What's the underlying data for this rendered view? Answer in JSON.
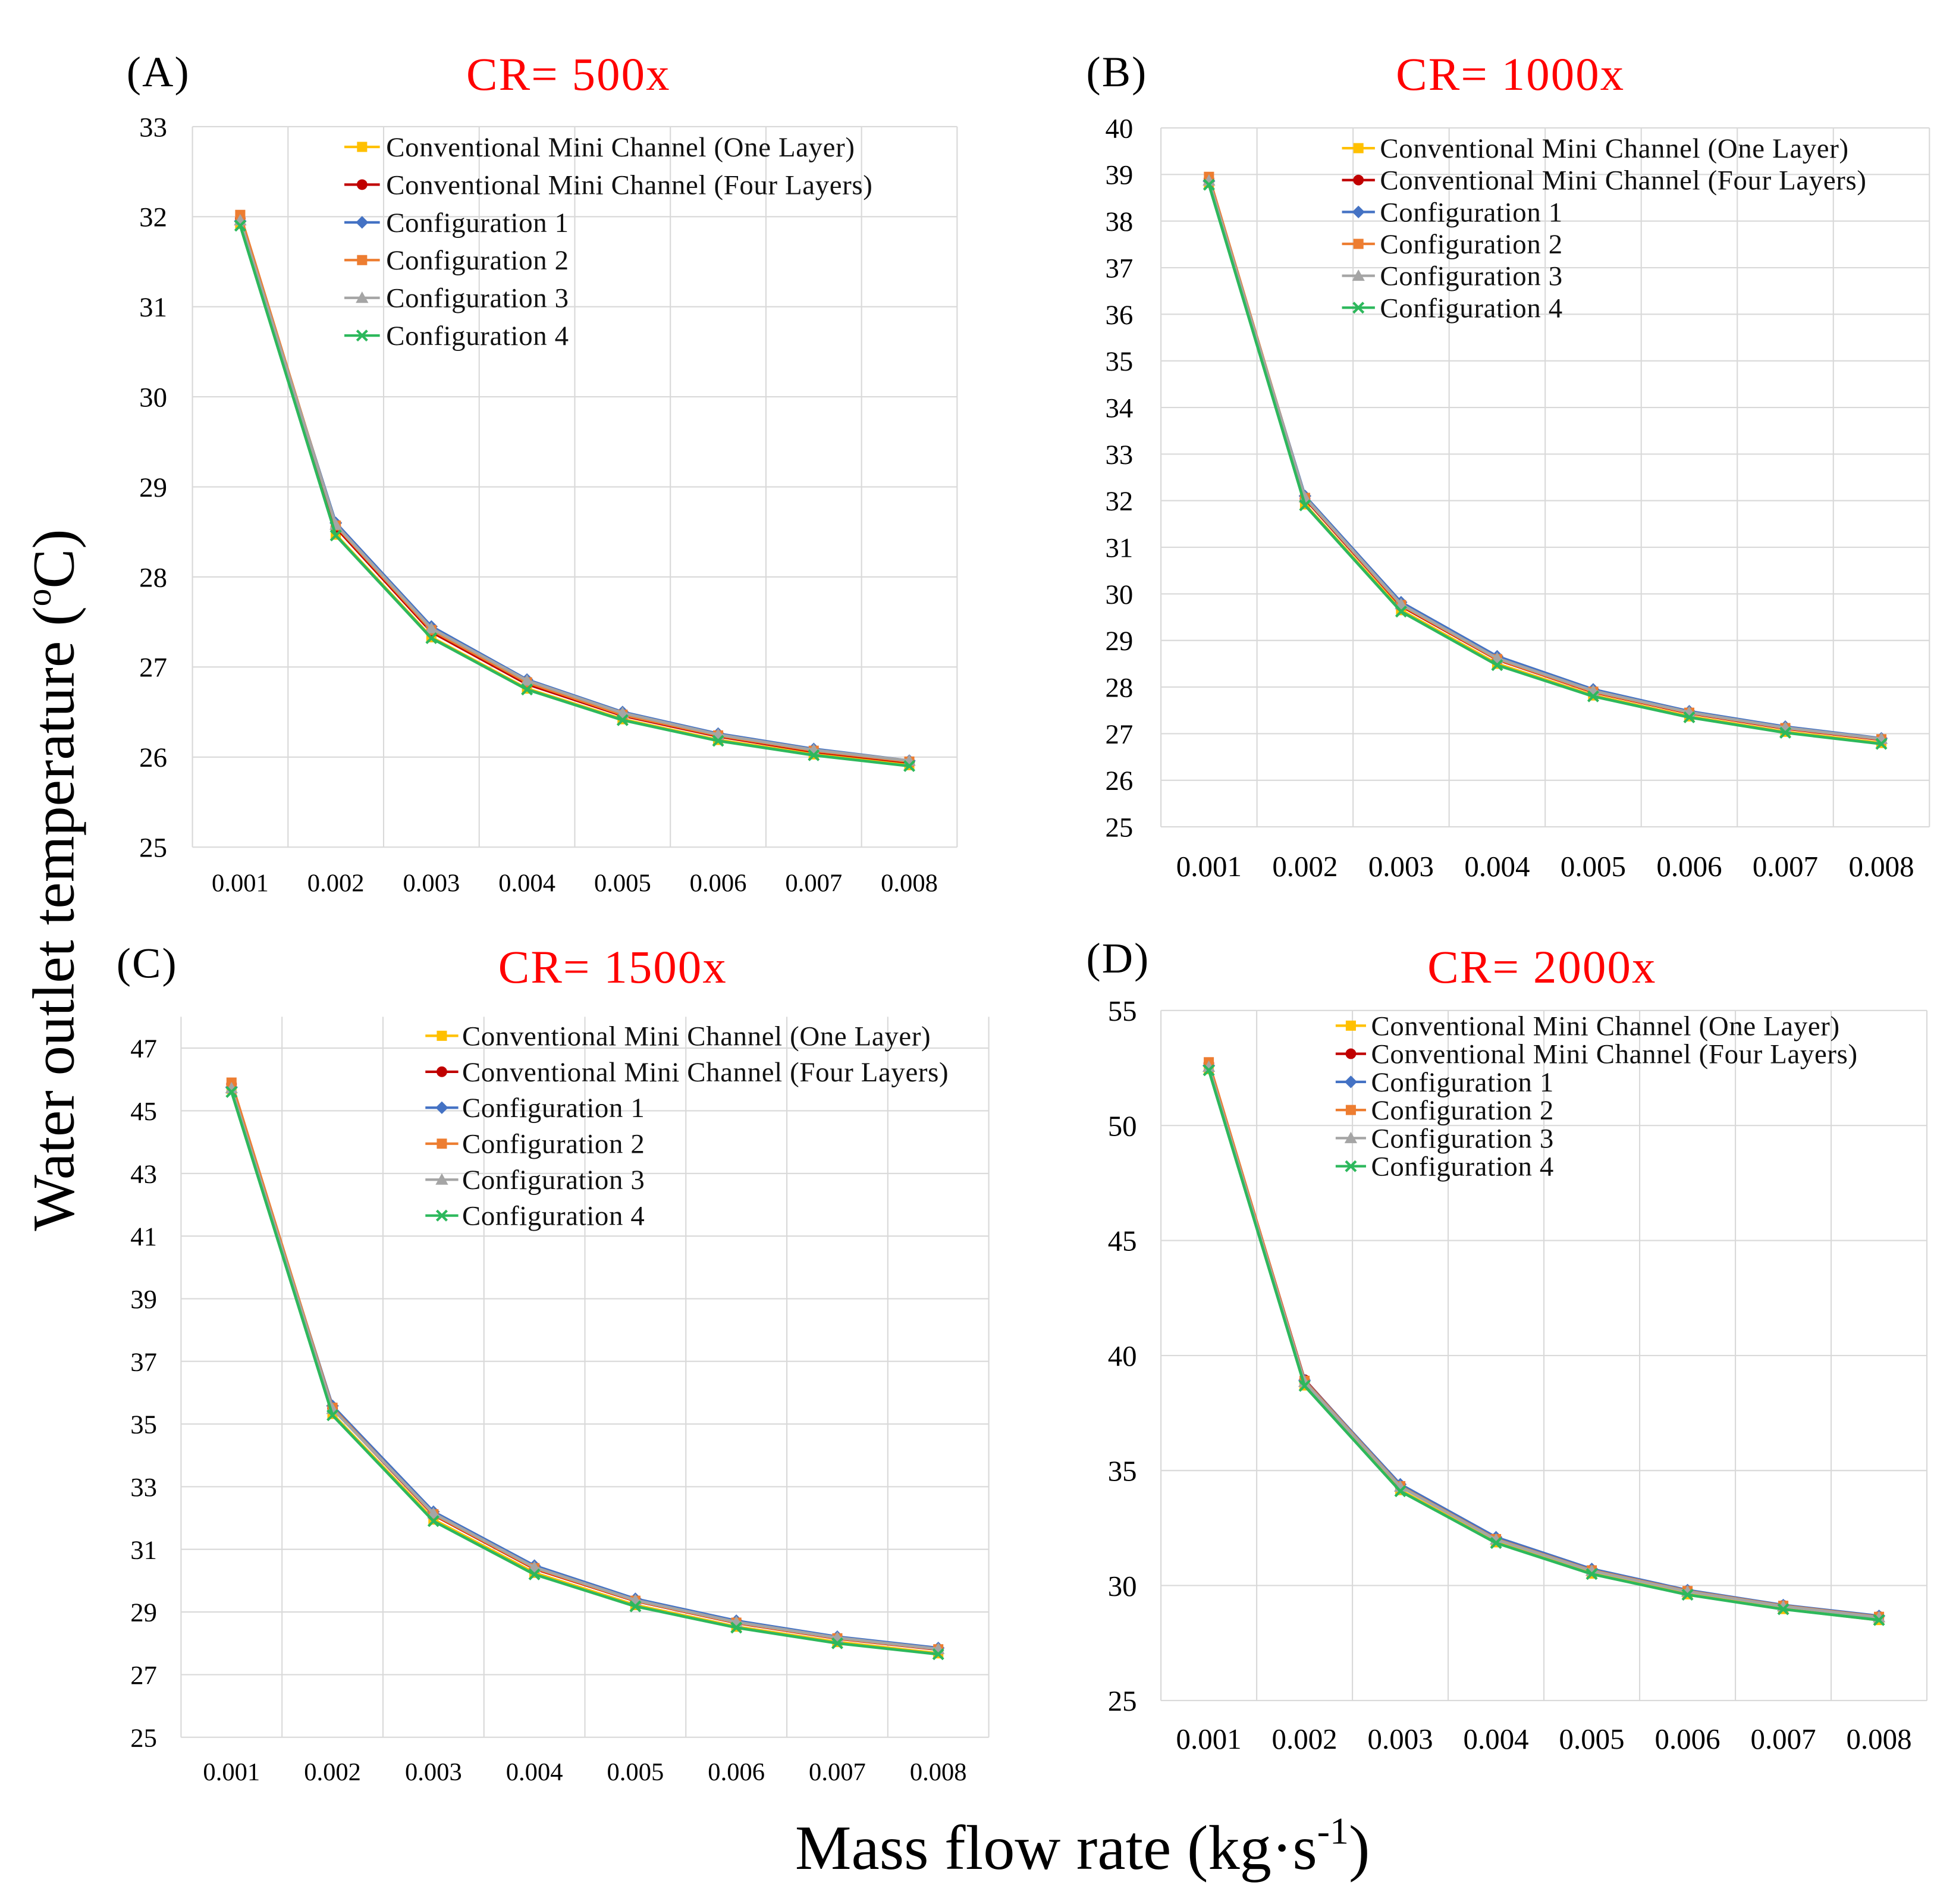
{
  "figure": {
    "ylabel": {
      "text": "Water outlet temperature (",
      "sup": "o",
      "tail": "C)"
    },
    "xlabel": {
      "text": "Mass flow rate (kg·s",
      "sup": "-1",
      "tail": ")"
    },
    "title_color": "#FF0000",
    "grid_color": "#D9D9D9"
  },
  "chart_data": [
    {
      "panel_label": "(A)",
      "title": "CR= 500x",
      "type": "line",
      "categories": [
        "0.001",
        "0.002",
        "0.003",
        "0.004",
        "0.005",
        "0.006",
        "0.007",
        "0.008"
      ],
      "ylim": [
        25,
        33
      ],
      "yticks": [
        25,
        26,
        27,
        28,
        29,
        30,
        31,
        32,
        33
      ],
      "grid": true,
      "legend_position": "top-center",
      "series": [
        {
          "name": "Conventional Mini Channel (One Layer)",
          "color": "#FFC000",
          "marker": "square",
          "values": [
            31.92,
            28.47,
            27.33,
            26.76,
            26.42,
            26.19,
            26.03,
            25.91
          ]
        },
        {
          "name": "Conventional Mini Channel (Four Layers)",
          "color": "#C00000",
          "marker": "circle",
          "values": [
            31.98,
            28.55,
            27.39,
            26.81,
            26.46,
            26.23,
            26.06,
            25.94
          ]
        },
        {
          "name": "Configuration 1",
          "color": "#4472C4",
          "marker": "diamond",
          "values": [
            31.95,
            28.6,
            27.45,
            26.86,
            26.5,
            26.26,
            26.09,
            25.96
          ]
        },
        {
          "name": "Configuration 2",
          "color": "#ED7D31",
          "marker": "square",
          "values": [
            32.02,
            28.57,
            27.41,
            26.83,
            26.47,
            26.24,
            26.07,
            25.95
          ]
        },
        {
          "name": "Configuration 3",
          "color": "#A5A5A5",
          "marker": "triangle",
          "values": [
            31.96,
            28.58,
            27.43,
            26.85,
            26.49,
            26.25,
            26.08,
            25.96
          ]
        },
        {
          "name": "Configuration 4",
          "color": "#2DB85C",
          "marker": "x",
          "values": [
            31.9,
            28.46,
            27.32,
            26.75,
            26.41,
            26.18,
            26.02,
            25.9
          ]
        }
      ]
    },
    {
      "panel_label": "(B)",
      "title": "CR= 1000x",
      "type": "line",
      "categories": [
        "0.001",
        "0.002",
        "0.003",
        "0.004",
        "0.005",
        "0.006",
        "0.007",
        "0.008"
      ],
      "ylim": [
        25,
        40
      ],
      "yticks": [
        25,
        26,
        27,
        28,
        29,
        30,
        31,
        32,
        33,
        34,
        35,
        36,
        37,
        38,
        39,
        40
      ],
      "grid": true,
      "legend_position": "top-center",
      "series": [
        {
          "name": "Conventional Mini Channel (One Layer)",
          "color": "#FFC000",
          "marker": "square",
          "values": [
            38.82,
            31.92,
            29.65,
            28.5,
            27.82,
            27.37,
            27.04,
            26.8
          ]
        },
        {
          "name": "Conventional Mini Channel (Four Layers)",
          "color": "#C00000",
          "marker": "circle",
          "values": [
            38.9,
            32.04,
            29.74,
            28.59,
            27.89,
            27.44,
            27.11,
            26.87
          ]
        },
        {
          "name": "Configuration 1",
          "color": "#4472C4",
          "marker": "diamond",
          "values": [
            38.86,
            32.1,
            29.82,
            28.66,
            27.95,
            27.48,
            27.15,
            26.9
          ]
        },
        {
          "name": "Configuration 2",
          "color": "#ED7D31",
          "marker": "square",
          "values": [
            38.95,
            32.06,
            29.76,
            28.6,
            27.9,
            27.45,
            27.12,
            26.88
          ]
        },
        {
          "name": "Configuration 3",
          "color": "#A5A5A5",
          "marker": "triangle",
          "values": [
            38.87,
            32.07,
            29.78,
            28.62,
            27.92,
            27.46,
            27.13,
            26.89
          ]
        },
        {
          "name": "Configuration 4",
          "color": "#2DB85C",
          "marker": "x",
          "values": [
            38.78,
            31.9,
            29.62,
            28.47,
            27.8,
            27.35,
            27.02,
            26.78
          ]
        }
      ]
    },
    {
      "panel_label": "(C)",
      "title": "CR= 1500x",
      "type": "line",
      "categories": [
        "0.001",
        "0.002",
        "0.003",
        "0.004",
        "0.005",
        "0.006",
        "0.007",
        "0.008"
      ],
      "ylim": [
        25,
        48
      ],
      "yticks": [
        25,
        27,
        29,
        31,
        33,
        35,
        37,
        39,
        41,
        43,
        45,
        47
      ],
      "grid": true,
      "legend_position": "top-center",
      "series": [
        {
          "name": "Conventional Mini Channel (One Layer)",
          "color": "#FFC000",
          "marker": "square",
          "values": [
            45.7,
            35.32,
            31.95,
            30.25,
            29.22,
            28.53,
            28.04,
            27.68
          ]
        },
        {
          "name": "Conventional Mini Channel (Four Layers)",
          "color": "#C00000",
          "marker": "circle",
          "values": [
            45.85,
            35.5,
            32.1,
            30.38,
            29.35,
            28.65,
            28.15,
            27.8
          ]
        },
        {
          "name": "Configuration 1",
          "color": "#4472C4",
          "marker": "diamond",
          "values": [
            45.75,
            35.58,
            32.2,
            30.48,
            29.42,
            28.72,
            28.21,
            27.85
          ]
        },
        {
          "name": "Configuration 2",
          "color": "#ED7D31",
          "marker": "square",
          "values": [
            45.9,
            35.52,
            32.12,
            30.4,
            29.36,
            28.66,
            28.16,
            27.81
          ]
        },
        {
          "name": "Configuration 3",
          "color": "#A5A5A5",
          "marker": "triangle",
          "values": [
            45.72,
            35.48,
            32.15,
            30.43,
            29.38,
            28.68,
            28.18,
            27.82
          ]
        },
        {
          "name": "Configuration 4",
          "color": "#2DB85C",
          "marker": "x",
          "values": [
            45.6,
            35.28,
            31.9,
            30.2,
            29.18,
            28.5,
            28.0,
            27.65
          ]
        }
      ]
    },
    {
      "panel_label": "(D)",
      "title": "CR= 2000x",
      "type": "line",
      "categories": [
        "0.001",
        "0.002",
        "0.003",
        "0.004",
        "0.005",
        "0.006",
        "0.007",
        "0.008"
      ],
      "ylim": [
        25,
        55
      ],
      "yticks": [
        25,
        30,
        35,
        40,
        45,
        50,
        55
      ],
      "grid": true,
      "legend_position": "top-center",
      "series": [
        {
          "name": "Conventional Mini Channel (One Layer)",
          "color": "#FFC000",
          "marker": "square",
          "values": [
            52.45,
            38.7,
            34.15,
            31.88,
            30.52,
            29.62,
            28.98,
            28.5
          ]
        },
        {
          "name": "Conventional Mini Channel (Four Layers)",
          "color": "#C00000",
          "marker": "circle",
          "values": [
            52.7,
            38.95,
            34.35,
            32.05,
            30.68,
            29.78,
            29.14,
            28.66
          ]
        },
        {
          "name": "Configuration 1",
          "color": "#4472C4",
          "marker": "diamond",
          "values": [
            52.6,
            38.92,
            34.4,
            32.1,
            30.72,
            29.8,
            29.15,
            28.68
          ]
        },
        {
          "name": "Configuration 2",
          "color": "#ED7D31",
          "marker": "square",
          "values": [
            52.75,
            38.9,
            34.32,
            32.02,
            30.66,
            29.76,
            29.12,
            28.64
          ]
        },
        {
          "name": "Configuration 3",
          "color": "#A5A5A5",
          "marker": "triangle",
          "values": [
            52.55,
            38.85,
            34.3,
            32.0,
            30.64,
            29.74,
            29.1,
            28.62
          ]
        },
        {
          "name": "Configuration 4",
          "color": "#2DB85C",
          "marker": "x",
          "values": [
            52.4,
            38.68,
            34.1,
            31.85,
            30.5,
            29.6,
            28.97,
            28.5
          ]
        }
      ]
    }
  ]
}
